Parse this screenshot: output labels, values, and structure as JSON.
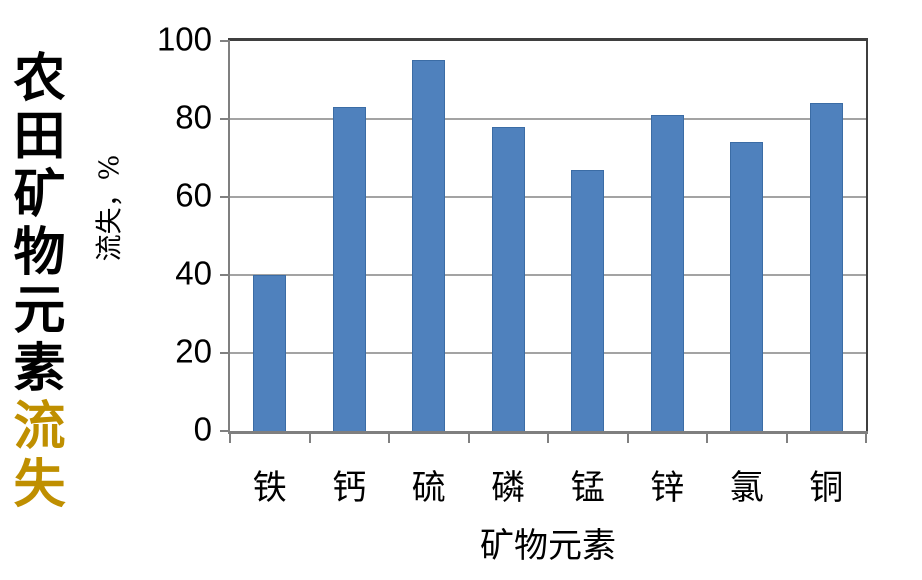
{
  "page_title": {
    "black_part": "农田矿物元素",
    "gold_part": "流失",
    "gold_color": "#BF8F00"
  },
  "chart_data": {
    "type": "bar",
    "title": "农田矿物元素流失",
    "categories": [
      "铁",
      "钙",
      "硫",
      "磷",
      "锰",
      "锌",
      "氯",
      "铜"
    ],
    "values": [
      40,
      83,
      95,
      78,
      67,
      81,
      74,
      84
    ],
    "xlabel": "矿物元素",
    "ylabel": "流失，%",
    "ylim": [
      0,
      100
    ],
    "yticks": [
      0,
      20,
      40,
      60,
      80,
      100
    ],
    "grid": true,
    "legend": false,
    "bar_color": "#4F81BD",
    "bar_border_color": "#3B6CA5",
    "gridline_color": "#A3A3A3",
    "axis_color": "#7F7F7F",
    "tick_color": "#808080",
    "plot_border_color": "#3F3F3F",
    "background_color": "#FFFFFF"
  }
}
